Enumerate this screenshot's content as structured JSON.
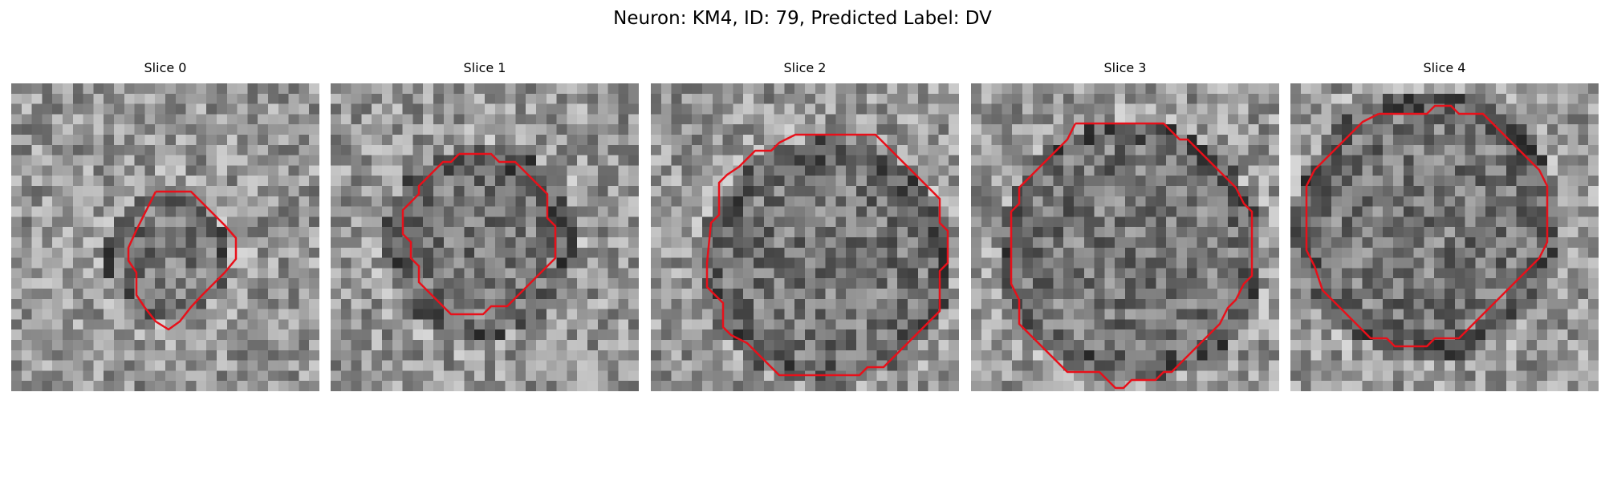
{
  "figure": {
    "title": "Neuron: KM4, ID: 79, Predicted Label: DV"
  },
  "colors": {
    "contour": "#e8101a",
    "background": "#ffffff"
  },
  "slices": [
    {
      "title": "Slice 0"
    },
    {
      "title": "Slice 1"
    },
    {
      "title": "Slice 2"
    },
    {
      "title": "Slice 3"
    },
    {
      "title": "Slice 4"
    }
  ]
}
